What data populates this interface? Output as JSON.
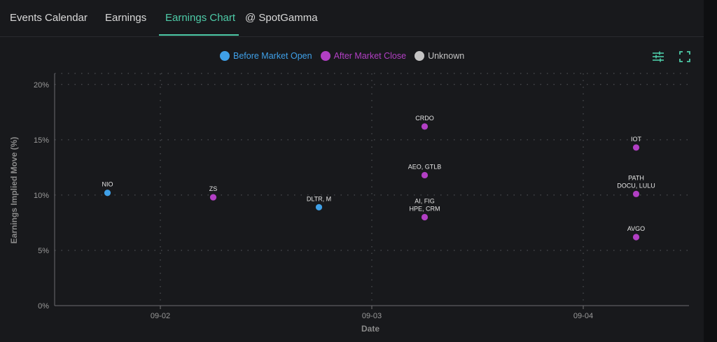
{
  "tabs": [
    {
      "label": "Events Calendar",
      "active": false
    },
    {
      "label": "Earnings",
      "active": false
    },
    {
      "label": "Earnings Chart",
      "active": true
    },
    {
      "label": "@ SpotGamma",
      "active": false
    }
  ],
  "toolbar": {
    "settings_icon": "sliders-icon",
    "fullscreen_icon": "expand-icon"
  },
  "colors": {
    "before_market_open": "#3fa0e8",
    "after_market_close": "#b23fc4",
    "unknown": "#c4c4c4",
    "accent": "#4ecba8"
  },
  "chart_data": {
    "type": "scatter",
    "xlabel": "Date",
    "ylabel": "Earnings Implied Move (%)",
    "x_ticks": [
      "09-02",
      "09-03",
      "09-04"
    ],
    "y_ticks": [
      "0%",
      "5%",
      "10%",
      "15%",
      "20%"
    ],
    "xlim": [
      "09-01 12:00",
      "09-04 12:00"
    ],
    "ylim": [
      0,
      21
    ],
    "grid": true,
    "legend": {
      "placement": "top-center",
      "entries": [
        "Before Market Open",
        "After Market Close",
        "Unknown"
      ]
    },
    "points": [
      {
        "label": "NIO",
        "date": "09-01 18:00",
        "value": 10.2,
        "series": "Before Market Open"
      },
      {
        "label": "ZS",
        "date": "09-02 06:00",
        "value": 9.8,
        "series": "After Market Close"
      },
      {
        "label": "DLTR, M",
        "date": "09-02 18:00",
        "value": 8.9,
        "series": "Before Market Open"
      },
      {
        "label": "CRDO",
        "date": "09-03 06:00",
        "value": 16.2,
        "series": "After Market Close"
      },
      {
        "label": "AEO, GTLB",
        "date": "09-03 06:00",
        "value": 11.8,
        "series": "After Market Close"
      },
      {
        "label": "AI, FIG\nHPE, CRM",
        "date": "09-03 06:00",
        "value": 8.0,
        "series": "After Market Close"
      },
      {
        "label": "IOT",
        "date": "09-04 06:00",
        "value": 14.3,
        "series": "After Market Close"
      },
      {
        "label": "PATH\nDOCU, LULU",
        "date": "09-04 06:00",
        "value": 10.1,
        "series": "After Market Close"
      },
      {
        "label": "AVGO",
        "date": "09-04 06:00",
        "value": 6.2,
        "series": "After Market Close"
      }
    ]
  }
}
